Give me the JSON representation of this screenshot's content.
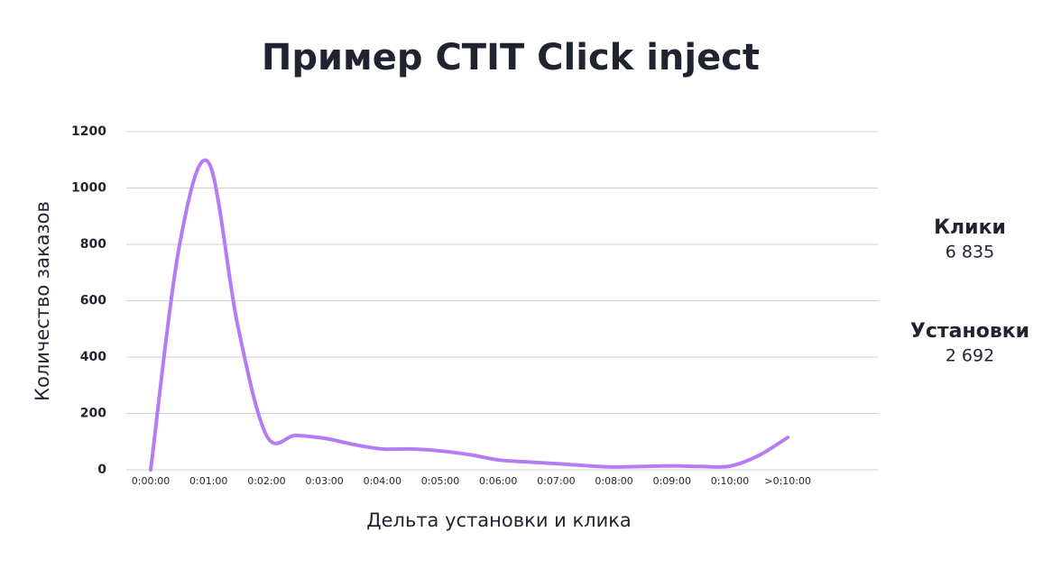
{
  "chart_data": {
    "type": "line",
    "title": "Пример CTIT Click inject",
    "x_label": "Дельта установки и клика",
    "y_label": "Количество заказов",
    "categories": [
      "0:00:00",
      null,
      "0:01:00",
      null,
      "0:02:00",
      null,
      "0:03:00",
      null,
      "0:04:00",
      null,
      "0:05:00",
      null,
      "0:06:00",
      null,
      "0:07:00",
      null,
      "0:08:00",
      null,
      "0:09:00",
      null,
      "0:10:00",
      null,
      ">0:10:00"
    ],
    "series": [
      {
        "name": "Количество заказов",
        "color": "#b57bf5",
        "values": [
          0,
          800,
          1090,
          515,
          122,
          122,
          112,
          90,
          74,
          74,
          67,
          54,
          35,
          28,
          22,
          15,
          10,
          12,
          14,
          12,
          13,
          51,
          115
        ]
      }
    ],
    "ylim": [
      0,
      1200
    ],
    "yticks": [
      0,
      200,
      400,
      600,
      800,
      1000,
      1200
    ],
    "grid": true,
    "annotations": [
      {
        "label": "Клики",
        "value": "6 835"
      },
      {
        "label": "Установки",
        "value": "2 692"
      }
    ]
  }
}
